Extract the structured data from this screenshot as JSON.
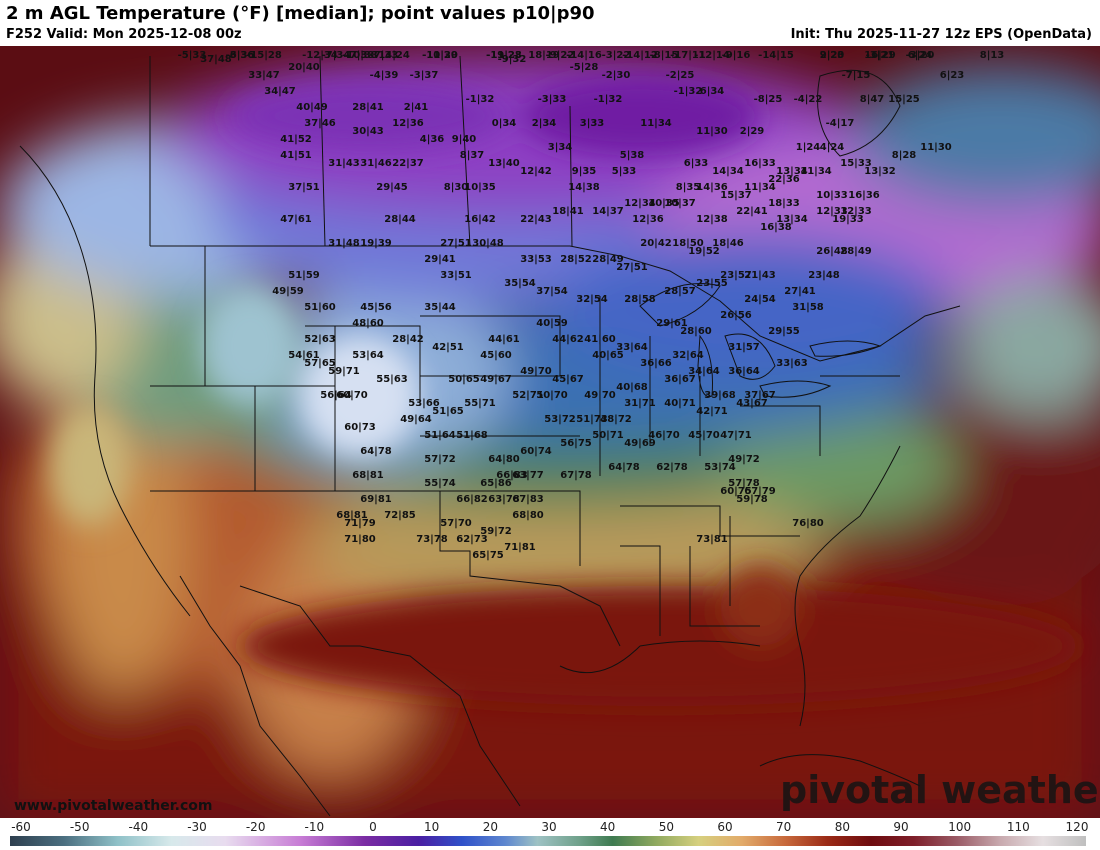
{
  "header": {
    "title": "2 m AGL Temperature (°F) [median]; point values p10|p90",
    "valid": "F252 Valid: Mon 2025-12-08 00z",
    "init": "Init: Thu 2025-11-27 12z EPS (OpenData)"
  },
  "watermark": {
    "site": "www.pivotalweather.com",
    "logo": "pivotal weather"
  },
  "colorbar": {
    "ticks": [
      "-60",
      "-50",
      "-40",
      "-30",
      "-20",
      "-10",
      "0",
      "10",
      "20",
      "30",
      "40",
      "50",
      "60",
      "70",
      "80",
      "90",
      "100",
      "110",
      "120"
    ],
    "unit": "°F"
  },
  "point_values": [
    {
      "t": "-15|28",
      "lat": 62,
      "lon": -132
    },
    {
      "t": "-14|24",
      "lat": 61,
      "lon": -116
    },
    {
      "t": "18|19",
      "lat": 62,
      "lon": -97
    },
    {
      "t": "-14|16",
      "lat": 59,
      "lon": -92
    },
    {
      "t": "-17|11",
      "lat": 60,
      "lon": -79
    },
    {
      "t": "-14|15",
      "lat": 59,
      "lon": -68
    },
    {
      "t": "16|29",
      "lat": 58,
      "lon": -55
    },
    {
      "t": "6|24",
      "lat": 58,
      "lon": -50
    },
    {
      "t": "-5|33",
      "lat": 55,
      "lon": -141
    },
    {
      "t": "-12|34",
      "lat": 55,
      "lon": -125
    },
    {
      "t": "-19|23",
      "lat": 56,
      "lon": -102
    },
    {
      "t": "-14|12",
      "lat": 57,
      "lon": -85
    },
    {
      "t": "-3|36",
      "lat": 52,
      "lon": -135
    },
    {
      "t": "-7|34",
      "lat": 53,
      "lon": -123
    },
    {
      "t": "-7|33",
      "lat": 53,
      "lon": -117
    },
    {
      "t": "-11|29",
      "lat": 53,
      "lon": -110
    },
    {
      "t": "-11|28",
      "lat": 53,
      "lon": -102
    },
    {
      "t": "-9|22",
      "lat": 53,
      "lon": -95
    },
    {
      "t": "-8|15",
      "lat": 54,
      "lon": -82
    },
    {
      "t": "-12|14",
      "lat": 53,
      "lon": -76
    },
    {
      "t": "-3|22",
      "lat": 51,
      "lon": -88
    },
    {
      "t": "2|23",
      "lat": 52,
      "lon": -61
    },
    {
      "t": "-3|21",
      "lat": 52,
      "lon": -55
    },
    {
      "t": "-3|20",
      "lat": 52,
      "lon": -50
    },
    {
      "t": "8|13",
      "lat": 50,
      "lon": -41
    },
    {
      "t": "-6|36",
      "lat": 49,
      "lon": -135
    },
    {
      "t": "-7|33",
      "lat": 50,
      "lon": -120
    },
    {
      "t": "-10|30",
      "lat": 50,
      "lon": -110
    },
    {
      "t": "-9|16",
      "lat": 50,
      "lon": -73
    },
    {
      "t": "37|48",
      "lat": 47,
      "lon": -138
    },
    {
      "t": "-10|33",
      "lat": 48,
      "lon": -120
    },
    {
      "t": "9|20",
      "lat": 48,
      "lon": -61
    },
    {
      "t": "20|40",
      "lat": 46,
      "lon": -127
    },
    {
      "t": "-9|32",
      "lat": 47,
      "lon": -101
    },
    {
      "t": "33|47",
      "lat": 45,
      "lon": -132
    },
    {
      "t": "-4|39",
      "lat": 45,
      "lon": -117
    },
    {
      "t": "-3|37",
      "lat": 45,
      "lon": -112
    },
    {
      "t": "-5|28",
      "lat": 46,
      "lon": -92
    },
    {
      "t": "-2|30",
      "lat": 45,
      "lon": -88
    },
    {
      "t": "-2|25",
      "lat": 45,
      "lon": -80
    },
    {
      "t": "-7|15",
      "lat": 45,
      "lon": -58
    },
    {
      "t": "6|23",
      "lat": 45,
      "lon": -46
    },
    {
      "t": "34|47",
      "lat": 43,
      "lon": -130
    },
    {
      "t": "-1|32",
      "lat": 42,
      "lon": -105
    },
    {
      "t": "-3|33",
      "lat": 42,
      "lon": -96
    },
    {
      "t": "-1|32",
      "lat": 42,
      "lon": -89
    },
    {
      "t": "-1|32",
      "lat": 43,
      "lon": -79
    },
    {
      "t": "6|34",
      "lat": 43,
      "lon": -76
    },
    {
      "t": "-8|25",
      "lat": 42,
      "lon": -69
    },
    {
      "t": "-4|22",
      "lat": 42,
      "lon": -64
    },
    {
      "t": "8|47",
      "lat": 42,
      "lon": -56
    },
    {
      "t": "15|25",
      "lat": 42,
      "lon": -52
    },
    {
      "t": "40|49",
      "lat": 41,
      "lon": -126
    },
    {
      "t": "28|41",
      "lat": 41,
      "lon": -119
    },
    {
      "t": "2|41",
      "lat": 41,
      "lon": -113
    },
    {
      "t": "0|34",
      "lat": 39,
      "lon": -102
    },
    {
      "t": "2|34",
      "lat": 39,
      "lon": -97
    },
    {
      "t": "3|33",
      "lat": 39,
      "lon": -91
    },
    {
      "t": "11|34",
      "lat": 39,
      "lon": -83
    },
    {
      "t": "11|30",
      "lat": 38,
      "lon": -76
    },
    {
      "t": "2|29",
      "lat": 38,
      "lon": -71
    },
    {
      "t": "-4|17",
      "lat": 39,
      "lon": -60
    },
    {
      "t": "37|46",
      "lat": 39,
      "lon": -125
    },
    {
      "t": "30|43",
      "lat": 38,
      "lon": -119
    },
    {
      "t": "12|36",
      "lat": 39,
      "lon": -114
    },
    {
      "t": "4|36",
      "lat": 37,
      "lon": -111
    },
    {
      "t": "9|40",
      "lat": 37,
      "lon": -107
    },
    {
      "t": "3|34",
      "lat": 36,
      "lon": -95
    },
    {
      "t": "1|24",
      "lat": 36,
      "lon": -64
    },
    {
      "t": "4|24",
      "lat": 36,
      "lon": -61
    },
    {
      "t": "11|30",
      "lat": 36,
      "lon": -48
    },
    {
      "t": "41|52",
      "lat": 37,
      "lon": -128
    },
    {
      "t": "8|37",
      "lat": 35,
      "lon": -106
    },
    {
      "t": "13|40",
      "lat": 34,
      "lon": -102
    },
    {
      "t": "5|38",
      "lat": 35,
      "lon": -86
    },
    {
      "t": "6|33",
      "lat": 34,
      "lon": -78
    },
    {
      "t": "16|33",
      "lat": 34,
      "lon": -70
    },
    {
      "t": "15|33",
      "lat": 34,
      "lon": -58
    },
    {
      "t": "8|28",
      "lat": 35,
      "lon": -52
    },
    {
      "t": "41|51",
      "lat": 35,
      "lon": -128
    },
    {
      "t": "31|43",
      "lat": 34,
      "lon": -122
    },
    {
      "t": "31|46",
      "lat": 34,
      "lon": -118
    },
    {
      "t": "22|37",
      "lat": 34,
      "lon": -114
    },
    {
      "t": "5|33",
      "lat": 33,
      "lon": -87
    },
    {
      "t": "12|42",
      "lat": 33,
      "lon": -98
    },
    {
      "t": "9|35",
      "lat": 33,
      "lon": -92
    },
    {
      "t": "14|34",
      "lat": 33,
      "lon": -74
    },
    {
      "t": "13|34",
      "lat": 33,
      "lon": -66
    },
    {
      "t": "11|34",
      "lat": 33,
      "lon": -63
    },
    {
      "t": "13|32",
      "lat": 33,
      "lon": -55
    },
    {
      "t": "37|51",
      "lat": 31,
      "lon": -127
    },
    {
      "t": "29|45",
      "lat": 31,
      "lon": -116
    },
    {
      "t": "8|30",
      "lat": 31,
      "lon": -108
    },
    {
      "t": "10|35",
      "lat": 31,
      "lon": -105
    },
    {
      "t": "14|38",
      "lat": 31,
      "lon": -92
    },
    {
      "t": "8|35",
      "lat": 31,
      "lon": -79
    },
    {
      "t": "14|36",
      "lat": 31,
      "lon": -76
    },
    {
      "t": "15|37",
      "lat": 30,
      "lon": -73
    },
    {
      "t": "11|34",
      "lat": 31,
      "lon": -70
    },
    {
      "t": "22|36",
      "lat": 32,
      "lon": -67
    },
    {
      "t": "10|33",
      "lat": 30,
      "lon": -61
    },
    {
      "t": "16|36",
      "lat": 30,
      "lon": -57
    },
    {
      "t": "12|34",
      "lat": 29,
      "lon": -85
    },
    {
      "t": "10|35",
      "lat": 29,
      "lon": -82
    },
    {
      "t": "10|37",
      "lat": 29,
      "lon": -80
    },
    {
      "t": "18|33",
      "lat": 29,
      "lon": -67
    },
    {
      "t": "47|61",
      "lat": 27,
      "lon": -128
    },
    {
      "t": "28|44",
      "lat": 27,
      "lon": -115
    },
    {
      "t": "16|42",
      "lat": 27,
      "lon": -105
    },
    {
      "t": "22|43",
      "lat": 27,
      "lon": -98
    },
    {
      "t": "18|41",
      "lat": 28,
      "lon": -94
    },
    {
      "t": "14|37",
      "lat": 28,
      "lon": -89
    },
    {
      "t": "12|36",
      "lat": 27,
      "lon": -84
    },
    {
      "t": "12|38",
      "lat": 27,
      "lon": -76
    },
    {
      "t": "22|41",
      "lat": 28,
      "lon": -71
    },
    {
      "t": "12|33",
      "lat": 28,
      "lon": -61
    },
    {
      "t": "19|33",
      "lat": 27,
      "lon": -59
    },
    {
      "t": "12|33",
      "lat": 28,
      "lon": -58
    },
    {
      "t": "13|34",
      "lat": 27,
      "lon": -66
    },
    {
      "t": "16|38",
      "lat": 26,
      "lon": -68
    },
    {
      "t": "31|48",
      "lat": 24,
      "lon": -122
    },
    {
      "t": "19|39",
      "lat": 24,
      "lon": -118
    },
    {
      "t": "27|51",
      "lat": 24,
      "lon": -108
    },
    {
      "t": "30|48",
      "lat": 24,
      "lon": -104
    },
    {
      "t": "20|42",
      "lat": 24,
      "lon": -83
    },
    {
      "t": "18|50",
      "lat": 24,
      "lon": -79
    },
    {
      "t": "18|46",
      "lat": 24,
      "lon": -74
    },
    {
      "t": "26|48",
      "lat": 23,
      "lon": -61
    },
    {
      "t": "28|49",
      "lat": 23,
      "lon": -58
    },
    {
      "t": "29|41",
      "lat": 22,
      "lon": -110
    },
    {
      "t": "33|53",
      "lat": 22,
      "lon": -98
    },
    {
      "t": "28|52",
      "lat": 22,
      "lon": -93
    },
    {
      "t": "28|49",
      "lat": 22,
      "lon": -89
    },
    {
      "t": "19|52",
      "lat": 23,
      "lon": -77
    },
    {
      "t": "51|59",
      "lat": 20,
      "lon": -127
    },
    {
      "t": "33|51",
      "lat": 20,
      "lon": -108
    },
    {
      "t": "27|51",
      "lat": 21,
      "lon": -86
    },
    {
      "t": "23|57",
      "lat": 20,
      "lon": -73
    },
    {
      "t": "21|43",
      "lat": 20,
      "lon": -70
    },
    {
      "t": "23|48",
      "lat": 20,
      "lon": -62
    },
    {
      "t": "35|54",
      "lat": 19,
      "lon": -100
    },
    {
      "t": "37|54",
      "lat": 18,
      "lon": -96
    },
    {
      "t": "28|57",
      "lat": 18,
      "lon": -80
    },
    {
      "t": "23|55",
      "lat": 19,
      "lon": -76
    },
    {
      "t": "27|41",
      "lat": 18,
      "lon": -65
    },
    {
      "t": "49|59",
      "lat": 18,
      "lon": -129
    },
    {
      "t": "28|58",
      "lat": 17,
      "lon": -85
    },
    {
      "t": "32|54",
      "lat": 17,
      "lon": -91
    },
    {
      "t": "24|54",
      "lat": 17,
      "lon": -70
    },
    {
      "t": "45|56",
      "lat": 16,
      "lon": -118
    },
    {
      "t": "35|44",
      "lat": 16,
      "lon": -110
    },
    {
      "t": "51|60",
      "lat": 16,
      "lon": -125
    },
    {
      "t": "31|58",
      "lat": 16,
      "lon": -64
    },
    {
      "t": "26|56",
      "lat": 15,
      "lon": -73
    },
    {
      "t": "48|60",
      "lat": 14,
      "lon": -119
    },
    {
      "t": "40|59",
      "lat": 14,
      "lon": -96
    },
    {
      "t": "29|61",
      "lat": 14,
      "lon": -81
    },
    {
      "t": "28|60",
      "lat": 13,
      "lon": -78
    },
    {
      "t": "29|55",
      "lat": 13,
      "lon": -67
    },
    {
      "t": "52|63",
      "lat": 12,
      "lon": -125
    },
    {
      "t": "28|42",
      "lat": 12,
      "lon": -114
    },
    {
      "t": "44|62",
      "lat": 12,
      "lon": -94
    },
    {
      "t": "41|60",
      "lat": 12,
      "lon": -90
    },
    {
      "t": "44|61",
      "lat": 12,
      "lon": -102
    },
    {
      "t": "42|51",
      "lat": 11,
      "lon": -109
    },
    {
      "t": "33|64",
      "lat": 11,
      "lon": -86
    },
    {
      "t": "31|57",
      "lat": 11,
      "lon": -72
    },
    {
      "t": "54|61",
      "lat": 10,
      "lon": -127
    },
    {
      "t": "53|64",
      "lat": 10,
      "lon": -119
    },
    {
      "t": "45|60",
      "lat": 10,
      "lon": -103
    },
    {
      "t": "40|65",
      "lat": 10,
      "lon": -89
    },
    {
      "t": "32|64",
      "lat": 10,
      "lon": -79
    },
    {
      "t": "33|63",
      "lat": 9,
      "lon": -66
    },
    {
      "t": "57|65",
      "lat": 9,
      "lon": -125
    },
    {
      "t": "36|66",
      "lat": 9,
      "lon": -83
    },
    {
      "t": "34|64",
      "lat": 8,
      "lon": -77
    },
    {
      "t": "36|64",
      "lat": 8,
      "lon": -72
    },
    {
      "t": "59|71",
      "lat": 8,
      "lon": -122
    },
    {
      "t": "55|63",
      "lat": 7,
      "lon": -116
    },
    {
      "t": "49|70",
      "lat": 8,
      "lon": -98
    },
    {
      "t": "45|67",
      "lat": 7,
      "lon": -94
    },
    {
      "t": "36|67",
      "lat": 7,
      "lon": -80
    },
    {
      "t": "50|65",
      "lat": 7,
      "lon": -107
    },
    {
      "t": "49|67",
      "lat": 7,
      "lon": -103
    },
    {
      "t": "40|68",
      "lat": 6,
      "lon": -86
    },
    {
      "t": "37|67",
      "lat": 5,
      "lon": -70
    },
    {
      "t": "56|64",
      "lat": 5,
      "lon": -123
    },
    {
      "t": "60|70",
      "lat": 5,
      "lon": -121
    },
    {
      "t": "50|70",
      "lat": 5,
      "lon": -96
    },
    {
      "t": "52|71",
      "lat": 5,
      "lon": -99
    },
    {
      "t": "49|70",
      "lat": 5,
      "lon": -90
    },
    {
      "t": "40|71",
      "lat": 4,
      "lon": -80
    },
    {
      "t": "39|68",
      "lat": 5,
      "lon": -75
    },
    {
      "t": "53|66",
      "lat": 4,
      "lon": -112
    },
    {
      "t": "55|71",
      "lat": 4,
      "lon": -105
    },
    {
      "t": "31|71",
      "lat": 4,
      "lon": -85
    },
    {
      "t": "43|67",
      "lat": 4,
      "lon": -71
    },
    {
      "t": "51|65",
      "lat": 3,
      "lon": -109
    },
    {
      "t": "49|64",
      "lat": 2,
      "lon": -113
    },
    {
      "t": "42|71",
      "lat": 3,
      "lon": -76
    },
    {
      "t": "53|72",
      "lat": 2,
      "lon": -95
    },
    {
      "t": "51|73",
      "lat": 2,
      "lon": -91
    },
    {
      "t": "48|72",
      "lat": 2,
      "lon": -88
    },
    {
      "t": "60|73",
      "lat": 1,
      "lon": -120
    },
    {
      "t": "51|64",
      "lat": 0,
      "lon": -110
    },
    {
      "t": "51|68",
      "lat": 0,
      "lon": -106
    },
    {
      "t": "50|71",
      "lat": 0,
      "lon": -89
    },
    {
      "t": "49|69",
      "lat": -1,
      "lon": -85
    },
    {
      "t": "46|70",
      "lat": 0,
      "lon": -82
    },
    {
      "t": "45|70",
      "lat": 0,
      "lon": -77
    },
    {
      "t": "47|71",
      "lat": 0,
      "lon": -73
    },
    {
      "t": "56|75",
      "lat": -1,
      "lon": -93
    },
    {
      "t": "64|78",
      "lat": -2,
      "lon": -118
    },
    {
      "t": "60|74",
      "lat": -2,
      "lon": -98
    },
    {
      "t": "64|80",
      "lat": -3,
      "lon": -102
    },
    {
      "t": "57|72",
      "lat": -3,
      "lon": -110
    },
    {
      "t": "49|72",
      "lat": -3,
      "lon": -72
    },
    {
      "t": "63|77",
      "lat": -5,
      "lon": -99
    },
    {
      "t": "67|78",
      "lat": -5,
      "lon": -93
    },
    {
      "t": "64|78",
      "lat": -4,
      "lon": -87
    },
    {
      "t": "62|78",
      "lat": -4,
      "lon": -81
    },
    {
      "t": "53|74",
      "lat": -4,
      "lon": -75
    },
    {
      "t": "68|81",
      "lat": -5,
      "lon": -119
    },
    {
      "t": "66|83",
      "lat": -5,
      "lon": -101
    },
    {
      "t": "57|78",
      "lat": -6,
      "lon": -72
    },
    {
      "t": "55|74",
      "lat": -6,
      "lon": -110
    },
    {
      "t": "65|86",
      "lat": -6,
      "lon": -103
    },
    {
      "t": "60|75",
      "lat": -7,
      "lon": -73
    },
    {
      "t": "67|79",
      "lat": -7,
      "lon": -70
    },
    {
      "t": "69|81",
      "lat": -8,
      "lon": -118
    },
    {
      "t": "67|83",
      "lat": -8,
      "lon": -99
    },
    {
      "t": "66|82",
      "lat": -8,
      "lon": -106
    },
    {
      "t": "63|78",
      "lat": -8,
      "lon": -102
    },
    {
      "t": "59|78",
      "lat": -8,
      "lon": -71
    },
    {
      "t": "68|81",
      "lat": -10,
      "lon": -121
    },
    {
      "t": "72|85",
      "lat": -10,
      "lon": -115
    },
    {
      "t": "68|80",
      "lat": -10,
      "lon": -99
    },
    {
      "t": "71|79",
      "lat": -11,
      "lon": -120
    },
    {
      "t": "57|70",
      "lat": -11,
      "lon": -108
    },
    {
      "t": "76|80",
      "lat": -11,
      "lon": -64
    },
    {
      "t": "73|78",
      "lat": -13,
      "lon": -111
    },
    {
      "t": "62|73",
      "lat": -13,
      "lon": -106
    },
    {
      "t": "59|72",
      "lat": -12,
      "lon": -103
    },
    {
      "t": "71|80",
      "lat": -13,
      "lon": -120
    },
    {
      "t": "71|81",
      "lat": -14,
      "lon": -100
    },
    {
      "t": "73|81",
      "lat": -13,
      "lon": -76
    },
    {
      "t": "65|75",
      "lat": -15,
      "lon": -104
    }
  ]
}
